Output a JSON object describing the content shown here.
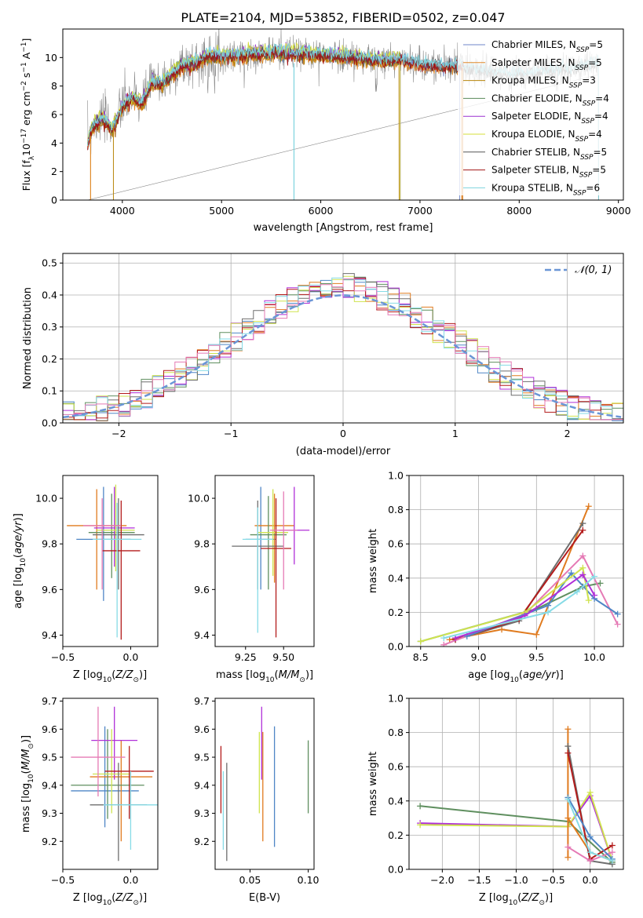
{
  "title": "PLATE=2104, MJD=53852, FIBERID=0502, z=0.047",
  "colors": {
    "chabrier_miles": "#6f86c9",
    "salpeter_miles": "#e08a2b",
    "kroupa_miles": "#b8860b",
    "chabrier_elodie": "#5a8a5a",
    "salpeter_elodie": "#9b30d0",
    "kroupa_elodie": "#d6df3a",
    "chabrier_stelib": "#555555",
    "salpeter_stelib": "#a21515",
    "kroupa_stelib": "#7dd3dd",
    "pink": "#e57ab5",
    "blue": "#4f86c6",
    "orange": "#e07b1f",
    "green": "#5f8f5f",
    "purple": "#b02fd8",
    "yellow": "#cfe34f",
    "gray": "#6e6e6e",
    "red": "#b31b1b",
    "cyan": "#86dbe6",
    "gauss": "#6a96d6"
  },
  "chart_data": [
    {
      "type": "line",
      "panel": "spectrum",
      "xlabel": "wavelength [Angstrom, rest frame]",
      "ylabel": "Flux [f_λ10^-17 erg cm^-2 s^-1 A^-1]",
      "xlim": [
        3400,
        9050
      ],
      "ylim": [
        0,
        12
      ],
      "xticks": [
        4000,
        5000,
        6000,
        7000,
        8000,
        9000
      ],
      "yticks": [
        0,
        2,
        4,
        6,
        8,
        10
      ],
      "legend": [
        "Chabrier MILES, N_SSP=5",
        "Salpeter MILES, N_SSP=5",
        "Kroupa MILES, N_SSP=3",
        "Chabrier ELODIE, N_SSP=4",
        "Salpeter ELODIE, N_SSP=4",
        "Kroupa ELODIE, N_SSP=4",
        "Chabrier STELIB, N_SSP=5",
        "Salpeter STELIB, N_SSP=5",
        "Kroupa STELIB, N_SSP=6"
      ],
      "legend_position": "right",
      "envelope_x": [
        3650,
        3700,
        3800,
        3900,
        4000,
        4100,
        4200,
        4300,
        4400,
        4500,
        4600,
        4700,
        4800,
        4900,
        5000,
        5200,
        5400,
        5600,
        5800,
        6000,
        6200,
        6400,
        6600,
        6800,
        7000,
        7200,
        7400,
        7600,
        7800,
        8000,
        8200,
        8400,
        8600,
        8800
      ],
      "envelope_y": [
        4.0,
        5.2,
        5.8,
        5.0,
        6.6,
        7.2,
        6.8,
        8.3,
        8.2,
        8.8,
        9.5,
        9.6,
        9.9,
        10.2,
        10.1,
        10.2,
        10.3,
        10.4,
        10.3,
        10.2,
        10.1,
        10.0,
        9.8,
        9.9,
        9.6,
        9.4,
        9.5,
        9.1,
        8.9,
        8.8,
        9.0,
        9.1,
        9.3,
        9.6
      ]
    },
    {
      "type": "line",
      "panel": "residual-histogram",
      "xlabel": "(data-model)/error",
      "ylabel": "Normed distribution",
      "xlim": [
        -2.5,
        2.5
      ],
      "ylim": [
        0,
        0.53
      ],
      "xticks": [
        -2,
        -1,
        0,
        1,
        2
      ],
      "yticks": [
        0.0,
        0.1,
        0.2,
        0.3,
        0.4,
        0.5
      ],
      "legend": [
        "𝒩(0, 1)"
      ],
      "legend_position": "top-right",
      "bin_width": 0.1
    },
    {
      "type": "scatter",
      "panel": "age-vs-Z",
      "xlabel": "Z [log10(Z/Z⊙)]",
      "ylabel": "age [log10(age/yr)]",
      "xlim": [
        -0.5,
        0.2
      ],
      "ylim": [
        9.35,
        10.1
      ],
      "xticks": [
        -0.5,
        0.0
      ],
      "yticks": [
        9.4,
        9.6,
        9.8,
        10.0
      ],
      "points": [
        {
          "x": -0.2,
          "y": 9.82,
          "xerr": 0.2,
          "ylo": 9.55,
          "yhi": 10.05,
          "c": "blue"
        },
        {
          "x": -0.25,
          "y": 9.88,
          "xerr": 0.22,
          "ylo": 9.6,
          "yhi": 10.04,
          "c": "orange"
        },
        {
          "x": -0.14,
          "y": 9.85,
          "xerr": 0.17,
          "ylo": 9.65,
          "yhi": 10.02,
          "c": "green"
        },
        {
          "x": -0.12,
          "y": 9.87,
          "xerr": 0.15,
          "ylo": 9.7,
          "yhi": 10.05,
          "c": "purple"
        },
        {
          "x": -0.11,
          "y": 9.86,
          "xerr": 0.14,
          "ylo": 9.68,
          "yhi": 10.06,
          "c": "yellow"
        },
        {
          "x": -0.09,
          "y": 9.84,
          "xerr": 0.19,
          "ylo": 9.6,
          "yhi": 10.0,
          "c": "gray"
        },
        {
          "x": -0.07,
          "y": 9.77,
          "xerr": 0.14,
          "ylo": 9.38,
          "yhi": 9.99,
          "c": "red"
        },
        {
          "x": -0.1,
          "y": 9.82,
          "xerr": 0.18,
          "ylo": 9.39,
          "yhi": 9.98,
          "c": "cyan"
        },
        {
          "x": -0.21,
          "y": 9.88,
          "xerr": 0.14,
          "ylo": 9.6,
          "yhi": 10.0,
          "c": "pink"
        }
      ]
    },
    {
      "type": "scatter",
      "panel": "age-vs-mass",
      "xlabel": "mass [log10(M/M⊙)]",
      "ylabel": "",
      "xlim": [
        9.05,
        9.7
      ],
      "ylim": [
        9.35,
        10.1
      ],
      "xticks": [
        9.25,
        9.5
      ],
      "tick_labels": [
        "9.25",
        "9.50"
      ],
      "yticks": [
        9.4,
        9.6,
        9.8,
        10.0
      ],
      "points": [
        {
          "x": 9.35,
          "y": 9.82,
          "xerr": 0.1,
          "ylo": 9.6,
          "yhi": 10.05,
          "c": "blue"
        },
        {
          "x": 9.44,
          "y": 9.88,
          "xerr": 0.13,
          "ylo": 9.63,
          "yhi": 10.02,
          "c": "orange"
        },
        {
          "x": 9.4,
          "y": 9.84,
          "xerr": 0.12,
          "ylo": 9.6,
          "yhi": 10.01,
          "c": "green"
        },
        {
          "x": 9.57,
          "y": 9.86,
          "xerr": 0.1,
          "ylo": 9.71,
          "yhi": 10.05,
          "c": "purple"
        },
        {
          "x": 9.43,
          "y": 9.85,
          "xerr": 0.1,
          "ylo": 9.66,
          "yhi": 10.04,
          "c": "yellow"
        },
        {
          "x": 9.33,
          "y": 9.79,
          "xerr": 0.17,
          "ylo": 9.6,
          "yhi": 9.99,
          "c": "gray"
        },
        {
          "x": 9.45,
          "y": 9.78,
          "xerr": 0.1,
          "ylo": 9.39,
          "yhi": 10.0,
          "c": "red"
        },
        {
          "x": 9.33,
          "y": 9.82,
          "xerr": 0.1,
          "ylo": 9.41,
          "yhi": 9.96,
          "c": "cyan"
        },
        {
          "x": 9.5,
          "y": 9.86,
          "xerr": 0.09,
          "ylo": 9.6,
          "yhi": 10.03,
          "c": "pink"
        }
      ]
    },
    {
      "type": "line",
      "panel": "mass-weight-vs-age",
      "xlabel": "age [log10(age/yr)]",
      "ylabel": "mass weight",
      "xlim": [
        8.4,
        10.25
      ],
      "ylim": [
        0,
        1
      ],
      "xticks": [
        8.5,
        9.0,
        9.5,
        10.0
      ],
      "yticks": [
        0.0,
        0.2,
        0.4,
        0.6,
        0.8,
        1.0
      ],
      "series": [
        {
          "c": "orange",
          "x": [
            8.75,
            9.2,
            9.5,
            9.95
          ],
          "y": [
            0.04,
            0.1,
            0.07,
            0.82
          ]
        },
        {
          "c": "gray",
          "x": [
            8.8,
            9.35,
            9.9
          ],
          "y": [
            0.04,
            0.15,
            0.72
          ]
        },
        {
          "c": "red",
          "x": [
            8.8,
            9.35,
            9.9
          ],
          "y": [
            0.04,
            0.16,
            0.68
          ]
        },
        {
          "c": "green",
          "x": [
            8.5,
            9.5,
            9.9,
            10.05
          ],
          "y": [
            0.03,
            0.22,
            0.35,
            0.37
          ]
        },
        {
          "c": "pink",
          "x": [
            8.7,
            9.4,
            9.9,
            10.2
          ],
          "y": [
            0.01,
            0.19,
            0.53,
            0.13
          ]
        },
        {
          "c": "blue",
          "x": [
            8.9,
            9.6,
            9.8,
            10.0,
            10.2
          ],
          "y": [
            0.06,
            0.24,
            0.43,
            0.28,
            0.19
          ]
        },
        {
          "c": "yellow",
          "x": [
            8.5,
            9.4,
            9.9,
            9.95
          ],
          "y": [
            0.03,
            0.2,
            0.46,
            0.27
          ]
        },
        {
          "c": "purple",
          "x": [
            8.8,
            9.4,
            9.9,
            10.0
          ],
          "y": [
            0.05,
            0.18,
            0.42,
            0.3
          ]
        },
        {
          "c": "cyan",
          "x": [
            8.7,
            9.6,
            9.85,
            10.0
          ],
          "y": [
            0.05,
            0.2,
            0.32,
            0.41
          ]
        }
      ]
    },
    {
      "type": "scatter",
      "panel": "mass-vs-Z",
      "xlabel": "Z [log10(Z/Z⊙)]",
      "ylabel": "mass [log10(M/M⊙)]",
      "xlim": [
        -0.5,
        0.2
      ],
      "ylim": [
        9.1,
        9.71
      ],
      "xticks": [
        -0.5,
        0.0
      ],
      "yticks": [
        9.2,
        9.3,
        9.4,
        9.5,
        9.6,
        9.7
      ],
      "points": [
        {
          "x": -0.19,
          "y": 9.38,
          "xerr": 0.25,
          "ylo": 9.25,
          "yhi": 9.61,
          "c": "blue"
        },
        {
          "x": -0.07,
          "y": 9.43,
          "xerr": 0.23,
          "ylo": 9.2,
          "yhi": 9.56,
          "c": "orange"
        },
        {
          "x": -0.17,
          "y": 9.4,
          "xerr": 0.27,
          "ylo": 9.28,
          "yhi": 9.6,
          "c": "green"
        },
        {
          "x": -0.12,
          "y": 9.56,
          "xerr": 0.17,
          "ylo": 9.42,
          "yhi": 9.68,
          "c": "purple"
        },
        {
          "x": -0.14,
          "y": 9.44,
          "xerr": 0.14,
          "ylo": 9.3,
          "yhi": 9.6,
          "c": "yellow"
        },
        {
          "x": -0.09,
          "y": 9.33,
          "xerr": 0.21,
          "ylo": 9.13,
          "yhi": 9.48,
          "c": "gray"
        },
        {
          "x": -0.01,
          "y": 9.45,
          "xerr": 0.18,
          "ylo": 9.28,
          "yhi": 9.54,
          "c": "red"
        },
        {
          "x": 0.0,
          "y": 9.33,
          "xerr": 0.2,
          "ylo": 9.17,
          "yhi": 9.45,
          "c": "cyan"
        },
        {
          "x": -0.24,
          "y": 9.5,
          "xerr": 0.2,
          "ylo": 9.36,
          "yhi": 9.68,
          "c": "pink"
        }
      ]
    },
    {
      "type": "scatter",
      "panel": "mass-vs-EBV",
      "xlabel": "E(B-V)",
      "ylabel": "",
      "xlim": [
        0.02,
        0.105
      ],
      "ylim": [
        9.1,
        9.71
      ],
      "xticks": [
        0.05,
        0.1
      ],
      "tick_labels": [
        "0.05",
        "0.10"
      ],
      "yticks": [
        9.2,
        9.3,
        9.4,
        9.5,
        9.6,
        9.7
      ],
      "points": [
        {
          "x": 0.071,
          "y": 9.4,
          "ylo": 9.18,
          "yhi": 9.61,
          "c": "blue"
        },
        {
          "x": 0.061,
          "y": 9.44,
          "ylo": 9.2,
          "yhi": 9.59,
          "c": "orange"
        },
        {
          "x": 0.1,
          "y": 9.4,
          "ylo": 9.3,
          "yhi": 9.56,
          "c": "green"
        },
        {
          "x": 0.06,
          "y": 9.55,
          "ylo": 9.42,
          "yhi": 9.68,
          "c": "purple"
        },
        {
          "x": 0.058,
          "y": 9.45,
          "ylo": 9.3,
          "yhi": 9.59,
          "c": "yellow"
        },
        {
          "x": 0.03,
          "y": 9.35,
          "ylo": 9.13,
          "yhi": 9.48,
          "c": "gray"
        },
        {
          "x": 0.025,
          "y": 9.42,
          "ylo": 9.3,
          "yhi": 9.54,
          "c": "red"
        },
        {
          "x": 0.027,
          "y": 9.3,
          "ylo": 9.17,
          "yhi": 9.45,
          "c": "cyan"
        }
      ]
    },
    {
      "type": "line",
      "panel": "mass-weight-vs-Z",
      "xlabel": "Z [log10(Z/Z⊙)]",
      "ylabel": "mass weight",
      "xlim": [
        -2.45,
        0.45
      ],
      "ylim": [
        0,
        1
      ],
      "xticks": [
        -2.0,
        -1.5,
        -1.0,
        -0.5,
        0.0
      ],
      "yticks": [
        0.0,
        0.2,
        0.4,
        0.6,
        0.8,
        1.0
      ],
      "series": [
        {
          "c": "green",
          "x": [
            -2.3,
            -0.3,
            0.3
          ],
          "y": [
            0.37,
            0.28,
            0.04
          ]
        },
        {
          "c": "purple",
          "x": [
            -2.3,
            -0.3,
            0.0,
            0.3
          ],
          "y": [
            0.27,
            0.25,
            0.43,
            0.05
          ]
        },
        {
          "c": "yellow",
          "x": [
            -2.3,
            -0.3,
            0.0,
            0.3
          ],
          "y": [
            0.26,
            0.25,
            0.45,
            0.05
          ]
        },
        {
          "c": "orange",
          "x": [
            -0.3,
            -0.3,
            -0.3,
            0.0,
            0.3
          ],
          "y": [
            0.07,
            0.82,
            0.3,
            0.1,
            0.05
          ]
        },
        {
          "c": "gray",
          "x": [
            -0.3,
            0.0,
            0.3
          ],
          "y": [
            0.72,
            0.05,
            0.03
          ]
        },
        {
          "c": "red",
          "x": [
            -0.3,
            0.0,
            0.3
          ],
          "y": [
            0.68,
            0.06,
            0.14
          ]
        },
        {
          "c": "pink",
          "x": [
            -0.3,
            0.0,
            0.3
          ],
          "y": [
            0.13,
            0.05,
            0.1
          ]
        },
        {
          "c": "blue",
          "x": [
            -0.3,
            0.0,
            0.3
          ],
          "y": [
            0.42,
            0.19,
            0.06
          ]
        },
        {
          "c": "cyan",
          "x": [
            -0.3,
            0.0,
            0.3
          ],
          "y": [
            0.41,
            0.1,
            0.05
          ]
        }
      ]
    }
  ]
}
